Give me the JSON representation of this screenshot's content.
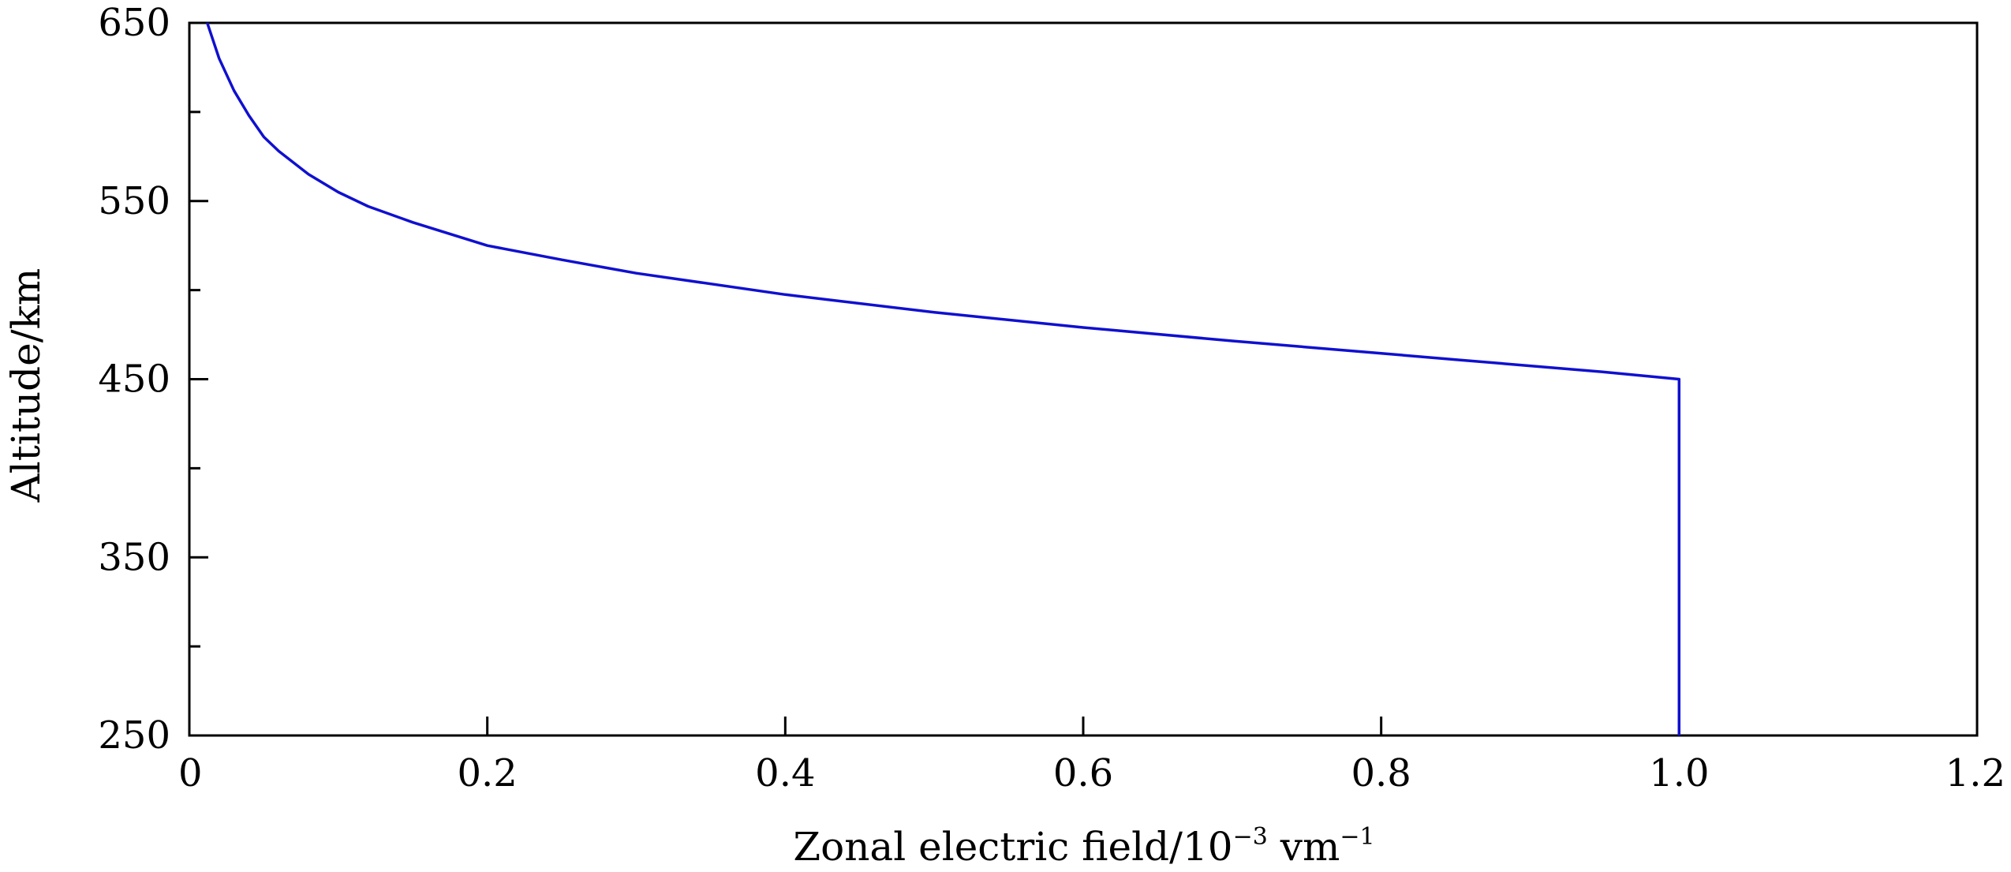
{
  "chart_data": {
    "type": "line",
    "title": "",
    "xlabel": {
      "prefix": "Zonal electric field/10",
      "exp1": "−3",
      "mid": " vm",
      "exp2": "−1"
    },
    "ylabel": "Altitude/km",
    "xlim": [
      0,
      1.2
    ],
    "ylim": [
      250,
      650
    ],
    "x_ticks": [
      0,
      0.2,
      0.4,
      0.6,
      0.8,
      1.0,
      1.2
    ],
    "x_tick_labels": [
      "0",
      "0.2",
      "0.4",
      "0.6",
      "0.8",
      "1.0",
      "1.2"
    ],
    "y_ticks": [
      250,
      350,
      450,
      550,
      650
    ],
    "y_tick_labels": [
      "250",
      "350",
      "450",
      "550",
      "650"
    ],
    "y_minor_ticks": [
      300,
      400,
      500,
      600
    ],
    "grid": false,
    "series": [
      {
        "color": "#1010d0",
        "x": [
          1.0,
          1.0,
          0.95,
          0.9,
          0.85,
          0.8,
          0.7,
          0.6,
          0.5,
          0.4,
          0.3,
          0.25,
          0.2,
          0.15,
          0.12,
          0.1,
          0.08,
          0.06,
          0.05,
          0.04,
          0.03,
          0.02,
          0.012
        ],
        "y": [
          250,
          450,
          454,
          457.5,
          461,
          464.5,
          471.5,
          479,
          487.5,
          497.5,
          509.5,
          517,
          525,
          538,
          547,
          555,
          565,
          578,
          586,
          598,
          612,
          630,
          650
        ]
      }
    ]
  }
}
